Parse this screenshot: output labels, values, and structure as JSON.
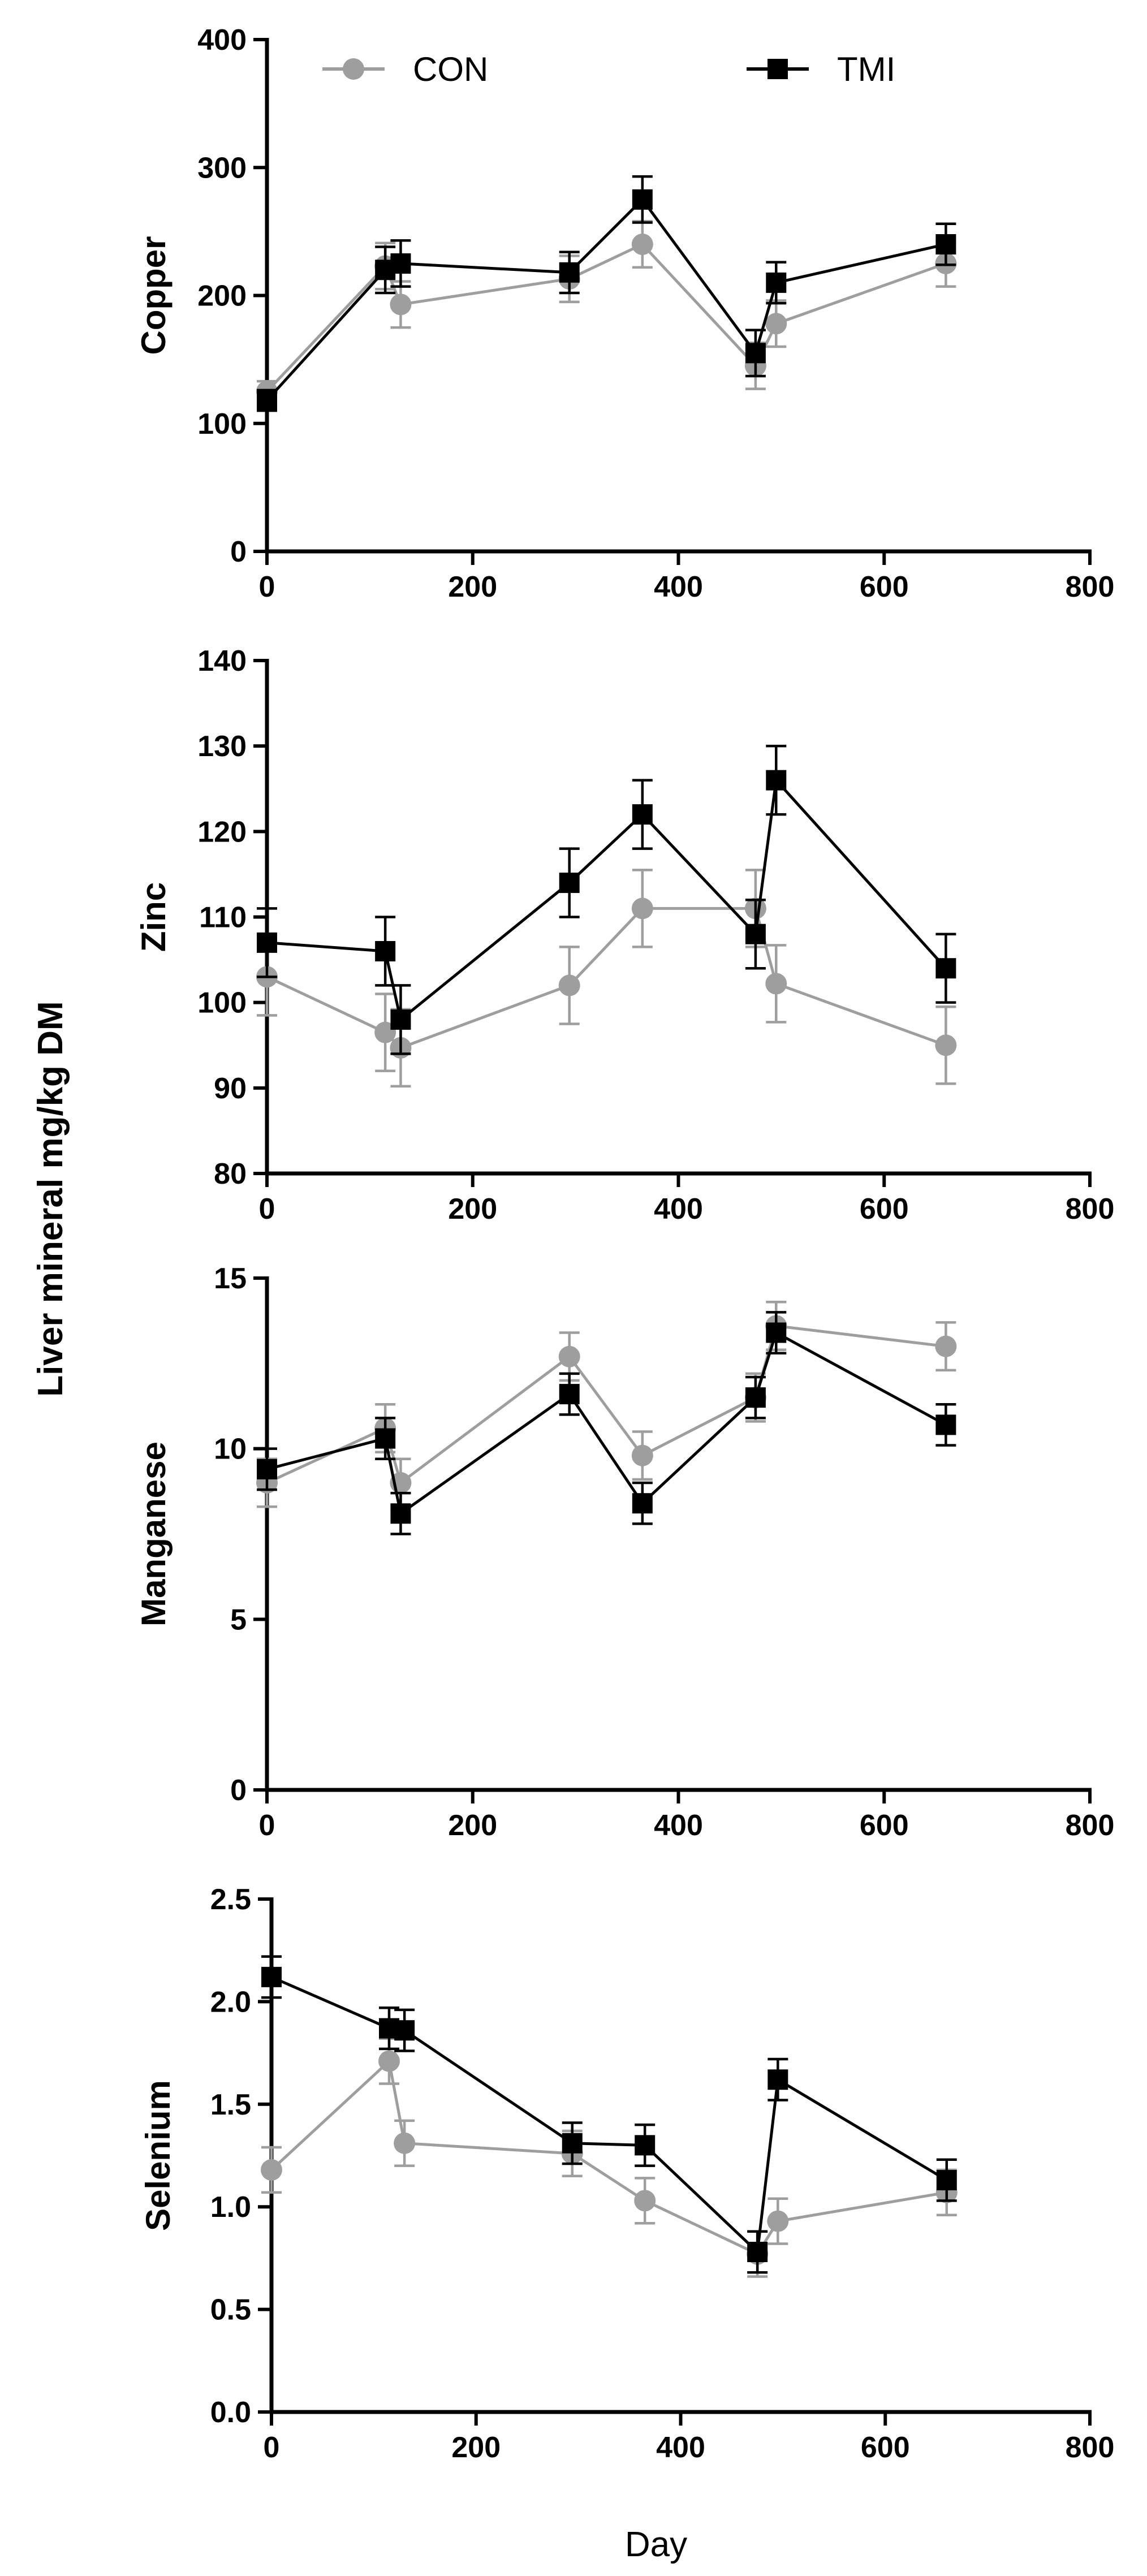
{
  "figure": {
    "shared_ylabel": "Liver mineral mg/kg DM",
    "xlabel": "Day"
  },
  "legend": {
    "items": [
      {
        "label": "CON",
        "color": "#9e9e9e",
        "marker": "circle"
      },
      {
        "label": "TMI",
        "color": "#000000",
        "marker": "square"
      }
    ],
    "placement": "top"
  },
  "chart_data": [
    {
      "type": "line",
      "ylabel": "Copper",
      "xlim": [
        0,
        800
      ],
      "ylim": [
        0,
        400
      ],
      "xticks": [
        0,
        200,
        400,
        600,
        800
      ],
      "yticks": [
        0,
        100,
        200,
        300,
        400
      ],
      "grid": false,
      "series": [
        {
          "name": "CON",
          "color": "#9e9e9e",
          "marker": "circle",
          "x": [
            0,
            115,
            130,
            294,
            365,
            475,
            495,
            660
          ],
          "y": [
            125,
            223,
            193,
            213,
            240,
            145,
            178,
            225
          ],
          "err": [
            8,
            18,
            18,
            18,
            18,
            18,
            18,
            18
          ]
        },
        {
          "name": "TMI",
          "color": "#000000",
          "marker": "square",
          "x": [
            0,
            115,
            130,
            294,
            365,
            475,
            495,
            660
          ],
          "y": [
            118,
            220,
            225,
            218,
            275,
            155,
            210,
            240
          ],
          "err": [
            8,
            18,
            18,
            16,
            18,
            18,
            16,
            16
          ]
        }
      ]
    },
    {
      "type": "line",
      "ylabel": "Zinc",
      "xlim": [
        0,
        800
      ],
      "ylim": [
        80,
        140
      ],
      "xticks": [
        0,
        200,
        400,
        600,
        800
      ],
      "yticks": [
        80,
        90,
        100,
        110,
        120,
        130,
        140
      ],
      "grid": false,
      "series": [
        {
          "name": "CON",
          "color": "#9e9e9e",
          "marker": "circle",
          "x": [
            0,
            115,
            130,
            294,
            365,
            475,
            495,
            660
          ],
          "y": [
            103,
            96.5,
            94.7,
            102,
            111,
            111,
            102.2,
            95
          ],
          "err": [
            4.5,
            4.5,
            4.5,
            4.5,
            4.5,
            4.5,
            4.5,
            4.5
          ]
        },
        {
          "name": "TMI",
          "color": "#000000",
          "marker": "square",
          "x": [
            0,
            115,
            130,
            294,
            365,
            475,
            495,
            660
          ],
          "y": [
            107,
            106,
            98,
            114,
            122,
            108,
            126,
            104
          ],
          "err": [
            4,
            4,
            4,
            4,
            4,
            4,
            4,
            4
          ]
        }
      ]
    },
    {
      "type": "line",
      "ylabel": "Manganese",
      "xlim": [
        0,
        800
      ],
      "ylim": [
        0,
        15
      ],
      "xticks": [
        0,
        200,
        400,
        600,
        800
      ],
      "yticks": [
        0,
        5,
        10,
        15
      ],
      "grid": false,
      "series": [
        {
          "name": "CON",
          "color": "#9e9e9e",
          "marker": "circle",
          "x": [
            0,
            115,
            130,
            294,
            365,
            475,
            495,
            660
          ],
          "y": [
            9.0,
            10.6,
            9.0,
            12.7,
            9.8,
            11.5,
            13.6,
            13.0
          ],
          "err": [
            0.7,
            0.7,
            0.7,
            0.7,
            0.7,
            0.7,
            0.7,
            0.7
          ]
        },
        {
          "name": "TMI",
          "color": "#000000",
          "marker": "square",
          "x": [
            0,
            115,
            130,
            294,
            365,
            475,
            495,
            660
          ],
          "y": [
            9.4,
            10.3,
            8.1,
            11.6,
            8.4,
            11.5,
            13.4,
            10.7
          ],
          "err": [
            0.6,
            0.6,
            0.6,
            0.6,
            0.6,
            0.6,
            0.6,
            0.6
          ]
        }
      ]
    },
    {
      "type": "line",
      "ylabel": "Selenium",
      "xlim": [
        0,
        800
      ],
      "ylim": [
        0,
        2.5
      ],
      "xticks": [
        0,
        200,
        400,
        600,
        800
      ],
      "yticks": [
        0.0,
        0.5,
        1.0,
        1.5,
        2.0,
        2.5
      ],
      "ytick_labels": [
        "0.0",
        "0.5",
        "1.0",
        "1.5",
        "2.0",
        "2.5"
      ],
      "grid": false,
      "series": [
        {
          "name": "CON",
          "color": "#9e9e9e",
          "marker": "circle",
          "x": [
            0,
            115,
            130,
            294,
            365,
            475,
            495,
            660
          ],
          "y": [
            1.18,
            1.71,
            1.31,
            1.26,
            1.03,
            0.77,
            0.93,
            1.07
          ],
          "err": [
            0.11,
            0.11,
            0.11,
            0.11,
            0.11,
            0.11,
            0.11,
            0.11
          ]
        },
        {
          "name": "TMI",
          "color": "#000000",
          "marker": "square",
          "x": [
            0,
            115,
            130,
            294,
            365,
            475,
            495,
            660
          ],
          "y": [
            2.12,
            1.87,
            1.86,
            1.31,
            1.3,
            0.78,
            1.62,
            1.13
          ],
          "err": [
            0.1,
            0.1,
            0.1,
            0.1,
            0.1,
            0.1,
            0.1,
            0.1
          ]
        }
      ]
    }
  ]
}
